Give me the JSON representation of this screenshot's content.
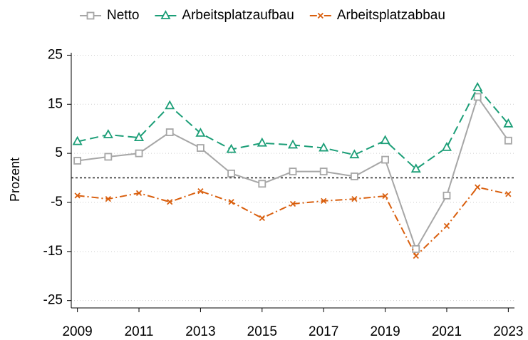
{
  "chart_data": {
    "type": "line",
    "y_label": "Prozent",
    "x": [
      2009,
      2010,
      2011,
      2012,
      2013,
      2014,
      2015,
      2016,
      2017,
      2018,
      2019,
      2020,
      2021,
      2022,
      2023
    ],
    "series": [
      {
        "name": "Netto",
        "color": "#a6a6a6",
        "marker": "square",
        "linestyle": "solid",
        "values": [
          3.5,
          4.3,
          5.0,
          9.3,
          6.1,
          0.9,
          -1.2,
          1.3,
          1.3,
          0.3,
          3.7,
          -14.5,
          -3.6,
          16.5,
          7.6
        ]
      },
      {
        "name": "Arbeitsplatzaufbau",
        "color": "#1b9e77",
        "marker": "triangle",
        "linestyle": "dashed",
        "values": [
          7.4,
          8.8,
          8.2,
          14.7,
          9.1,
          5.8,
          7.1,
          6.7,
          6.1,
          4.7,
          7.6,
          1.8,
          6.2,
          18.4,
          11.0
        ]
      },
      {
        "name": "Arbeitsplatzabbau",
        "color": "#d95f0e",
        "marker": "x",
        "linestyle": "dashdot",
        "values": [
          -3.6,
          -4.3,
          -3.1,
          -4.9,
          -2.7,
          -4.9,
          -8.2,
          -5.3,
          -4.7,
          -4.3,
          -3.7,
          -15.9,
          -9.8,
          -1.9,
          -3.3
        ]
      }
    ],
    "xlim": [
      2008.8,
      2023.2
    ],
    "xticks": [
      2009,
      2011,
      2013,
      2015,
      2017,
      2019,
      2021,
      2023
    ],
    "ylim": [
      -26.5,
      25.5
    ],
    "yticks": [
      -25,
      -15,
      -5,
      5,
      15,
      25
    ],
    "reference_line": 0,
    "grid": true,
    "legend": "top"
  }
}
